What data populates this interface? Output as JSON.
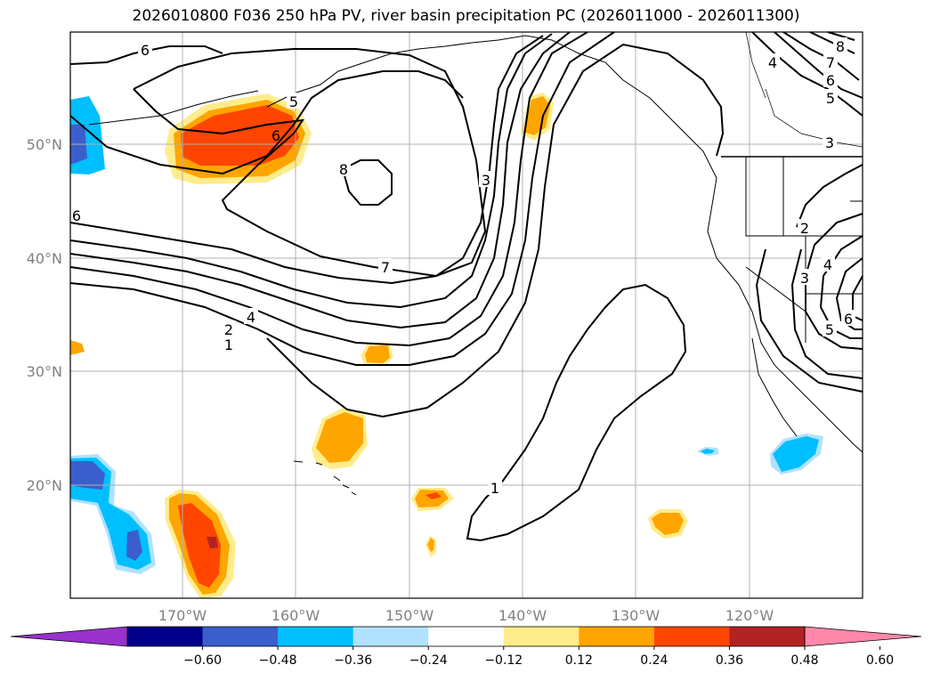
{
  "title": "2026010800 F036 250 hPa PV, river basin precipitation PC (2026011000 - 2026011300)",
  "lat_labels": [
    "50°N",
    "40°N",
    "30°N",
    "20°N"
  ],
  "lon_labels": [
    "170°W",
    "160°W",
    "150°W",
    "140°W",
    "130°W",
    "120°W"
  ],
  "colorbar": {
    "ticks": [
      "−0.60",
      "−0.48",
      "−0.36",
      "−0.24",
      "−0.12",
      "0.12",
      "0.24",
      "0.36",
      "0.48",
      "0.60"
    ],
    "colors": [
      "#9932cc",
      "#00008b",
      "#3a5fcd",
      "#00bfff",
      "#b0e2ff",
      "#ffffff",
      "#ffec8b",
      "#ffa500",
      "#ff4500",
      "#b22222",
      "#ff88aa"
    ]
  },
  "contour_labels": [
    "6",
    "5",
    "6",
    "8",
    "3",
    "7",
    "4",
    "2",
    "1",
    "1",
    "6",
    "4",
    "7",
    "8",
    "6",
    "5",
    "3",
    "2",
    "3",
    "4",
    "5",
    "6"
  ],
  "colors": {
    "map_border": "#000000",
    "grid": "#b0b0b0",
    "contour": "#000000"
  }
}
